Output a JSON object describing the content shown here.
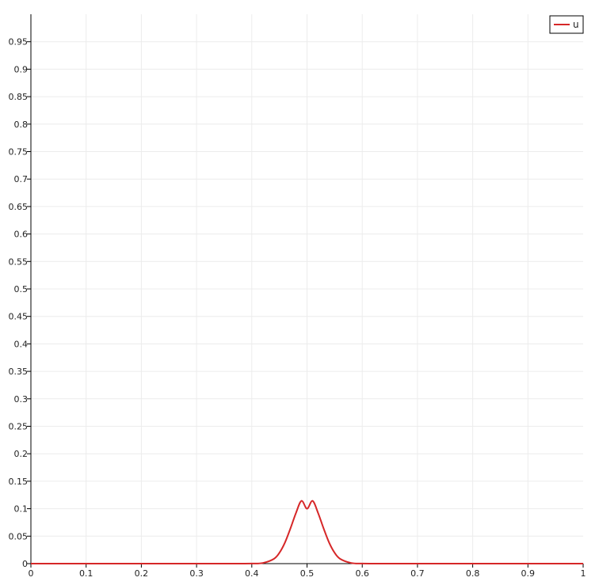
{
  "chart_data": {
    "type": "line",
    "title": "",
    "xlabel": "",
    "ylabel": "",
    "xlim": [
      0,
      1
    ],
    "ylim": [
      0,
      1
    ],
    "x_ticks": [
      0,
      0.1,
      0.2,
      0.3,
      0.4,
      0.5,
      0.6,
      0.7,
      0.8,
      0.9,
      1
    ],
    "x_tick_labels": [
      "0",
      "0.1",
      "0.2",
      "0.3",
      "0.4",
      "0.5",
      "0.6",
      "0.7",
      "0.8",
      "0.9",
      "1"
    ],
    "y_ticks": [
      0,
      0.05,
      0.1,
      0.15,
      0.2,
      0.25,
      0.3,
      0.35,
      0.4,
      0.45,
      0.5,
      0.55,
      0.6,
      0.65,
      0.7,
      0.75,
      0.8,
      0.85,
      0.9,
      0.95
    ],
    "y_tick_labels": [
      "0",
      "0.05",
      "0.1",
      "0.15",
      "0.2",
      "0.25",
      "0.3",
      "0.35",
      "0.4",
      "0.45",
      "0.5",
      "0.55",
      "0.6",
      "0.65",
      "0.7",
      "0.75",
      "0.8",
      "0.85",
      "0.9",
      "0.95"
    ],
    "grid": true,
    "legend_position": "top-right",
    "series": [
      {
        "name": "u",
        "color": "#d62728",
        "x": [
          0,
          0.1,
          0.2,
          0.3,
          0.35,
          0.4,
          0.42,
          0.44,
          0.45,
          0.46,
          0.47,
          0.48,
          0.49,
          0.5,
          0.51,
          0.52,
          0.53,
          0.54,
          0.55,
          0.56,
          0.58,
          0.6,
          0.65,
          0.7,
          0.8,
          0.9,
          1
        ],
        "y": [
          0,
          0,
          0,
          0,
          0,
          0.0001,
          0.0012,
          0.0087,
          0.0197,
          0.0383,
          0.0641,
          0.0923,
          0.1142,
          0.1,
          0.1142,
          0.0923,
          0.0641,
          0.0383,
          0.0197,
          0.0087,
          0.0012,
          0.0001,
          0,
          0,
          0,
          0,
          0
        ]
      }
    ]
  },
  "colors": {
    "grid": "#ececec",
    "axis": "#000000",
    "series_u": "#d62728"
  }
}
